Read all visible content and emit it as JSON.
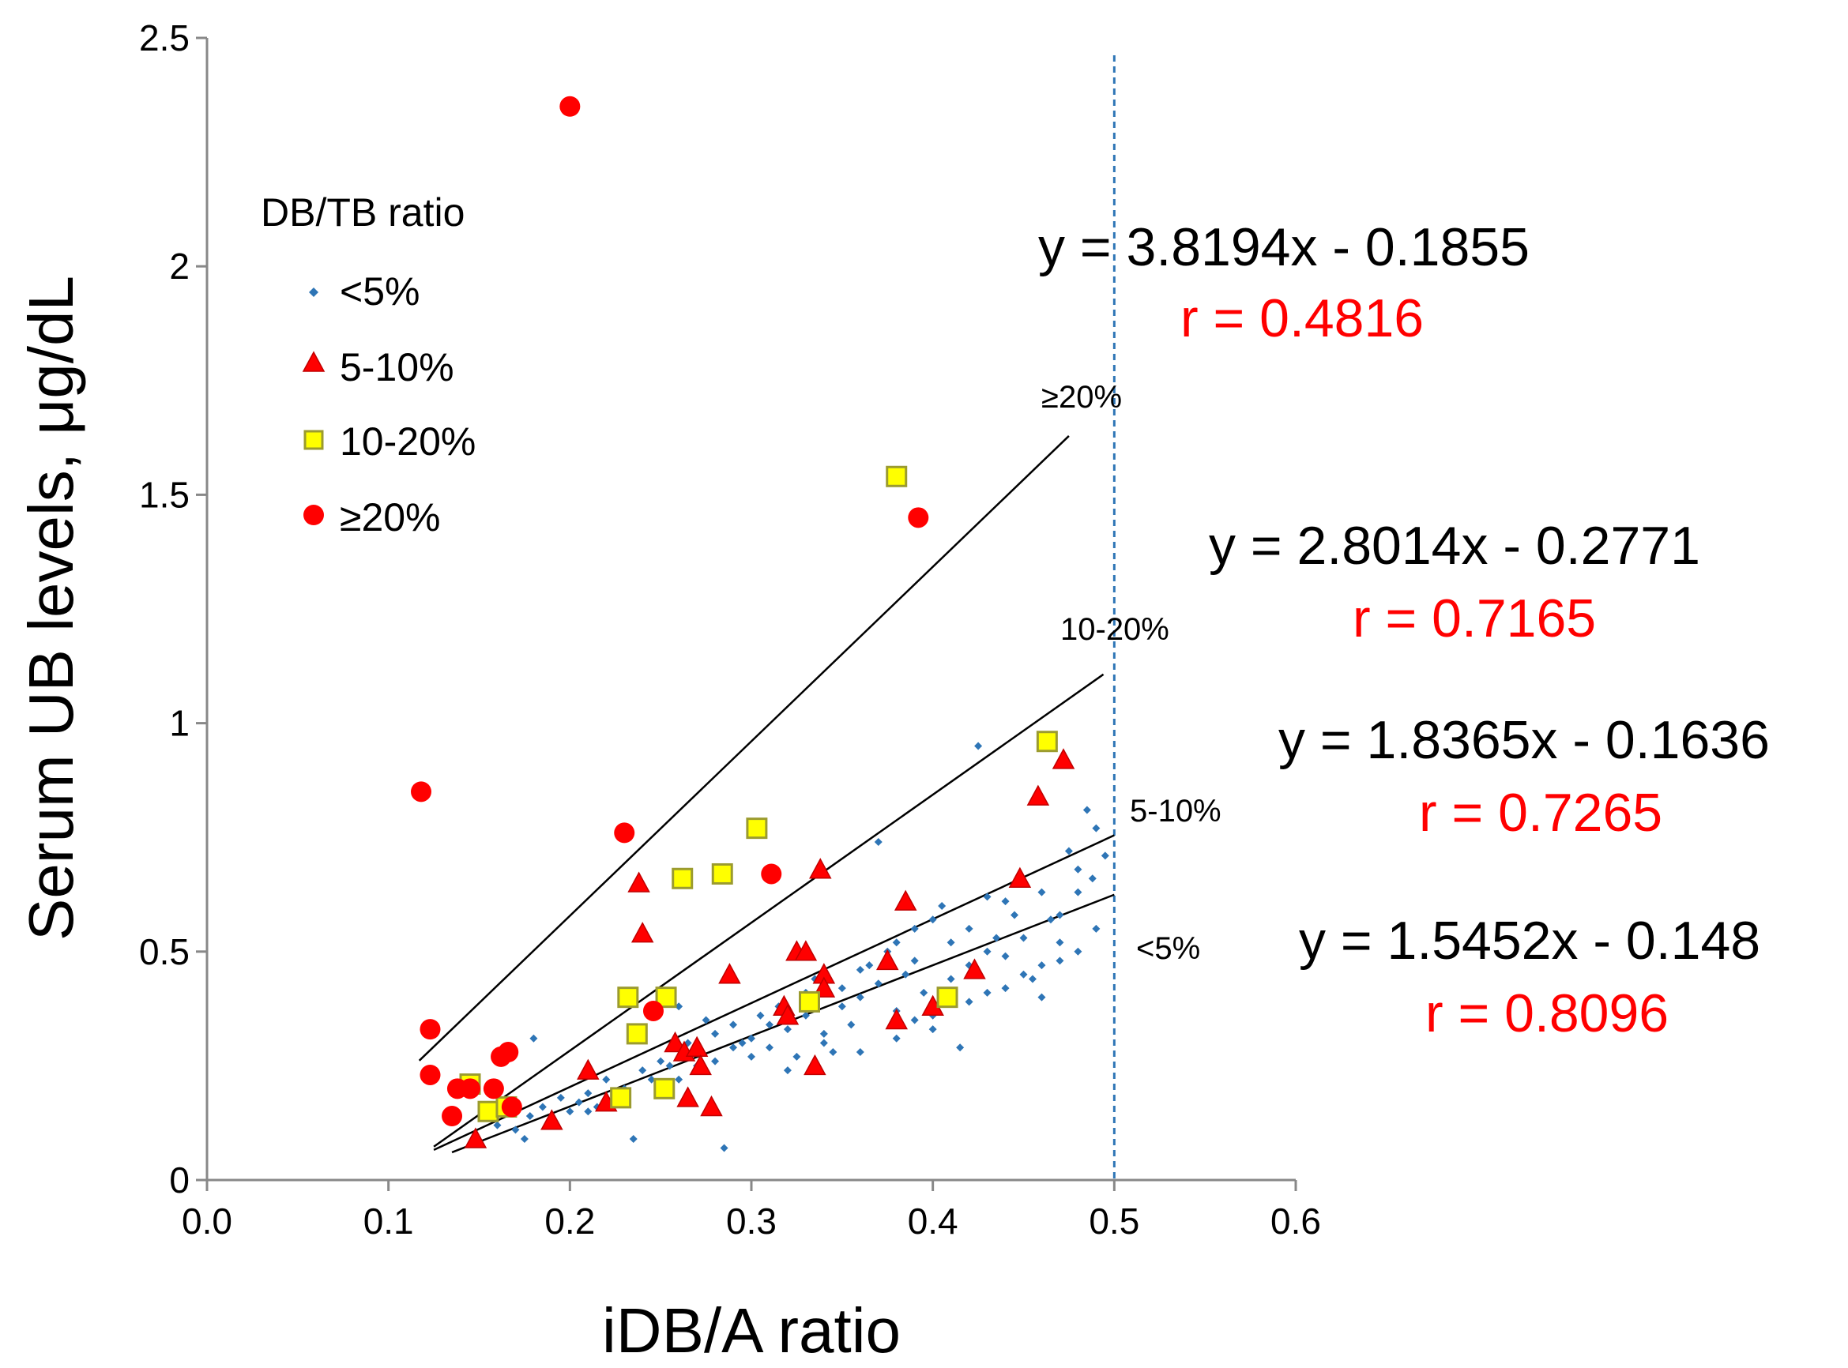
{
  "chart_data": {
    "type": "scatter",
    "xlabel": "iDB/A ratio",
    "ylabel": "Serum UB levels, μg/dL",
    "xlim": [
      0,
      0.6
    ],
    "ylim": [
      0,
      2.5
    ],
    "x_ticks": [
      "0.0",
      "0.1",
      "0.2",
      "0.3",
      "0.4",
      "0.5",
      "0.6"
    ],
    "y_ticks": [
      "0",
      "0.5",
      "1",
      "1.5",
      "2",
      "2.5"
    ],
    "grid": false,
    "reference_line": {
      "x": 0.5,
      "style": "dashed",
      "color": "#2e75b6"
    },
    "legend": {
      "title": "DB/TB ratio",
      "placement": "top-left",
      "entries": [
        "<5%",
        "5-10%",
        "10-20%",
        "≥20%"
      ]
    },
    "series": [
      {
        "name": "<5%",
        "marker": "diamond",
        "color": "#2e75b6",
        "points": [
          [
            0.16,
            0.12
          ],
          [
            0.165,
            0.15
          ],
          [
            0.17,
            0.11
          ],
          [
            0.175,
            0.09
          ],
          [
            0.178,
            0.14
          ],
          [
            0.18,
            0.31
          ],
          [
            0.185,
            0.16
          ],
          [
            0.19,
            0.13
          ],
          [
            0.195,
            0.18
          ],
          [
            0.2,
            0.15
          ],
          [
            0.205,
            0.17
          ],
          [
            0.21,
            0.19
          ],
          [
            0.215,
            0.16
          ],
          [
            0.22,
            0.22
          ],
          [
            0.225,
            0.18
          ],
          [
            0.23,
            0.2
          ],
          [
            0.235,
            0.09
          ],
          [
            0.24,
            0.24
          ],
          [
            0.245,
            0.22
          ],
          [
            0.25,
            0.26
          ],
          [
            0.255,
            0.25
          ],
          [
            0.26,
            0.38
          ],
          [
            0.265,
            0.3
          ],
          [
            0.27,
            0.28
          ],
          [
            0.275,
            0.35
          ],
          [
            0.28,
            0.32
          ],
          [
            0.285,
            0.07
          ],
          [
            0.29,
            0.34
          ],
          [
            0.295,
            0.3
          ],
          [
            0.3,
            0.31
          ],
          [
            0.305,
            0.36
          ],
          [
            0.31,
            0.29
          ],
          [
            0.315,
            0.38
          ],
          [
            0.32,
            0.33
          ],
          [
            0.325,
            0.27
          ],
          [
            0.33,
            0.36
          ],
          [
            0.335,
            0.44
          ],
          [
            0.34,
            0.3
          ],
          [
            0.345,
            0.28
          ],
          [
            0.35,
            0.42
          ],
          [
            0.355,
            0.34
          ],
          [
            0.36,
            0.4
          ],
          [
            0.365,
            0.47
          ],
          [
            0.37,
            0.74
          ],
          [
            0.375,
            0.5
          ],
          [
            0.38,
            0.31
          ],
          [
            0.385,
            0.45
          ],
          [
            0.39,
            0.55
          ],
          [
            0.395,
            0.41
          ],
          [
            0.4,
            0.36
          ],
          [
            0.405,
            0.6
          ],
          [
            0.41,
            0.52
          ],
          [
            0.415,
            0.29
          ],
          [
            0.42,
            0.47
          ],
          [
            0.425,
            0.95
          ],
          [
            0.43,
            0.62
          ],
          [
            0.435,
            0.53
          ],
          [
            0.44,
            0.49
          ],
          [
            0.445,
            0.58
          ],
          [
            0.45,
            0.65
          ],
          [
            0.455,
            0.44
          ],
          [
            0.46,
            0.4
          ],
          [
            0.465,
            0.57
          ],
          [
            0.47,
            0.52
          ],
          [
            0.475,
            0.72
          ],
          [
            0.48,
            0.63
          ],
          [
            0.485,
            0.81
          ],
          [
            0.488,
            0.66
          ],
          [
            0.49,
            0.55
          ],
          [
            0.495,
            0.71
          ],
          [
            0.26,
            0.22
          ],
          [
            0.28,
            0.26
          ],
          [
            0.3,
            0.27
          ],
          [
            0.32,
            0.24
          ],
          [
            0.34,
            0.32
          ],
          [
            0.36,
            0.28
          ],
          [
            0.38,
            0.37
          ],
          [
            0.4,
            0.33
          ],
          [
            0.42,
            0.39
          ],
          [
            0.44,
            0.42
          ],
          [
            0.46,
            0.47
          ],
          [
            0.48,
            0.5
          ],
          [
            0.33,
            0.41
          ],
          [
            0.35,
            0.38
          ],
          [
            0.37,
            0.43
          ],
          [
            0.39,
            0.48
          ],
          [
            0.41,
            0.44
          ],
          [
            0.43,
            0.5
          ],
          [
            0.45,
            0.53
          ],
          [
            0.47,
            0.58
          ],
          [
            0.31,
            0.34
          ],
          [
            0.29,
            0.29
          ],
          [
            0.27,
            0.25
          ],
          [
            0.25,
            0.21
          ],
          [
            0.23,
            0.19
          ],
          [
            0.21,
            0.15
          ],
          [
            0.19,
            0.12
          ],
          [
            0.36,
            0.46
          ],
          [
            0.38,
            0.52
          ],
          [
            0.4,
            0.57
          ],
          [
            0.42,
            0.55
          ],
          [
            0.44,
            0.61
          ],
          [
            0.46,
            0.63
          ],
          [
            0.48,
            0.68
          ],
          [
            0.49,
            0.77
          ],
          [
            0.47,
            0.48
          ],
          [
            0.45,
            0.45
          ],
          [
            0.43,
            0.41
          ],
          [
            0.41,
            0.39
          ],
          [
            0.39,
            0.35
          ]
        ]
      },
      {
        "name": "5-10%",
        "marker": "triangle",
        "color": "#ff0000",
        "points": [
          [
            0.148,
            0.09
          ],
          [
            0.19,
            0.13
          ],
          [
            0.21,
            0.24
          ],
          [
            0.22,
            0.17
          ],
          [
            0.238,
            0.65
          ],
          [
            0.24,
            0.54
          ],
          [
            0.258,
            0.3
          ],
          [
            0.263,
            0.28
          ],
          [
            0.265,
            0.18
          ],
          [
            0.27,
            0.29
          ],
          [
            0.272,
            0.25
          ],
          [
            0.278,
            0.16
          ],
          [
            0.288,
            0.45
          ],
          [
            0.318,
            0.38
          ],
          [
            0.32,
            0.36
          ],
          [
            0.325,
            0.5
          ],
          [
            0.33,
            0.5
          ],
          [
            0.335,
            0.25
          ],
          [
            0.338,
            0.68
          ],
          [
            0.34,
            0.45
          ],
          [
            0.34,
            0.42
          ],
          [
            0.375,
            0.48
          ],
          [
            0.38,
            0.35
          ],
          [
            0.385,
            0.61
          ],
          [
            0.4,
            0.38
          ],
          [
            0.423,
            0.46
          ],
          [
            0.448,
            0.66
          ],
          [
            0.458,
            0.84
          ],
          [
            0.472,
            0.92
          ]
        ]
      },
      {
        "name": "10-20%",
        "marker": "square",
        "color": "#ffff00",
        "points": [
          [
            0.145,
            0.21
          ],
          [
            0.155,
            0.15
          ],
          [
            0.165,
            0.16
          ],
          [
            0.228,
            0.18
          ],
          [
            0.232,
            0.4
          ],
          [
            0.237,
            0.32
          ],
          [
            0.252,
            0.2
          ],
          [
            0.253,
            0.4
          ],
          [
            0.262,
            0.66
          ],
          [
            0.284,
            0.67
          ],
          [
            0.303,
            0.77
          ],
          [
            0.332,
            0.39
          ],
          [
            0.38,
            1.54
          ],
          [
            0.408,
            0.4
          ],
          [
            0.463,
            0.96
          ]
        ]
      },
      {
        "name": "≥20%",
        "marker": "circle",
        "color": "#ff0000",
        "points": [
          [
            0.118,
            0.85
          ],
          [
            0.123,
            0.33
          ],
          [
            0.123,
            0.23
          ],
          [
            0.135,
            0.14
          ],
          [
            0.138,
            0.2
          ],
          [
            0.145,
            0.2
          ],
          [
            0.158,
            0.2
          ],
          [
            0.162,
            0.27
          ],
          [
            0.166,
            0.28
          ],
          [
            0.168,
            0.16
          ],
          [
            0.2,
            2.35
          ],
          [
            0.23,
            0.76
          ],
          [
            0.246,
            0.37
          ],
          [
            0.311,
            0.67
          ],
          [
            0.392,
            1.45
          ]
        ]
      }
    ],
    "fits": [
      {
        "label": "≥20%",
        "x0": 0.117,
        "x1": 0.475,
        "equation": "y = 3.8194x - 0.1855",
        "r": "r = 0.4816"
      },
      {
        "label": "10-20%",
        "x0": 0.125,
        "x1": 0.494,
        "equation": "y = 2.8014x - 0.2771",
        "r": "r = 0.7165"
      },
      {
        "label": "5-10%",
        "x0": 0.125,
        "x1": 0.5,
        "equation": "y = 1.8365x - 0.1636",
        "r": "r = 0.7265"
      },
      {
        "label": "<5%",
        "x0": 0.135,
        "x1": 0.5,
        "equation": "y = 1.5452x - 0.148",
        "r": "r = 0.8096"
      }
    ]
  }
}
